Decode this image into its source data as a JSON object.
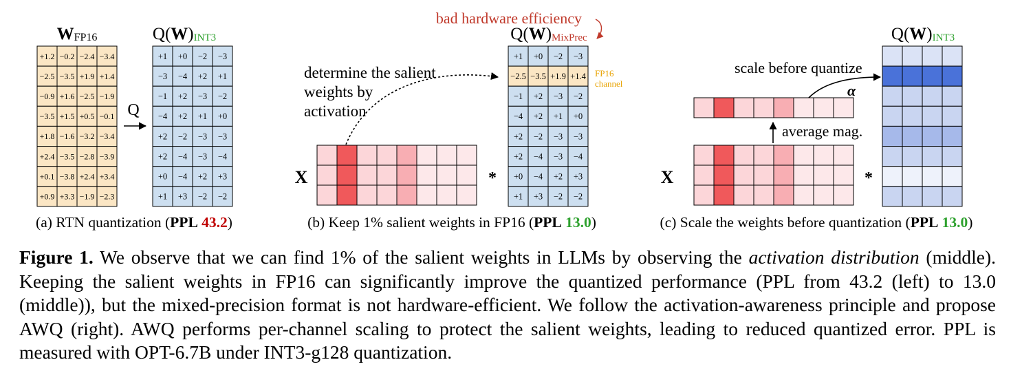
{
  "figure": {
    "panel_a": {
      "weight_title_main": "W",
      "weight_title_sub": "FP16",
      "quant_title_pre": "Q(",
      "quant_title_bold": "W",
      "quant_title_post": ")",
      "quant_title_sub": "INT3",
      "arrow_label": "Q",
      "fp16_matrix": [
        [
          "+1.2",
          "−0.2",
          "−2.4",
          "−3.4"
        ],
        [
          "−2.5",
          "−3.5",
          "+1.9",
          "+1.4"
        ],
        [
          "−0.9",
          "+1.6",
          "−2.5",
          "−1.9"
        ],
        [
          "−3.5",
          "+1.5",
          "+0.5",
          "−0.1"
        ],
        [
          "+1.8",
          "−1.6",
          "−3.2",
          "−3.4"
        ],
        [
          "+2.4",
          "−3.5",
          "−2.8",
          "−3.9"
        ],
        [
          "+0.1",
          "−3.8",
          "+2.4",
          "+3.4"
        ],
        [
          "+0.9",
          "+3.3",
          "−1.9",
          "−2.3"
        ]
      ],
      "int3_matrix": [
        [
          "+1",
          "+0",
          "−2",
          "−3"
        ],
        [
          "−3",
          "−4",
          "+2",
          "+1"
        ],
        [
          "−1",
          "+2",
          "−3",
          "−2"
        ],
        [
          "−4",
          "+2",
          "+1",
          "+0"
        ],
        [
          "+2",
          "−2",
          "−3",
          "−3"
        ],
        [
          "+2",
          "−4",
          "−3",
          "−4"
        ],
        [
          "+0",
          "−4",
          "+2",
          "+3"
        ],
        [
          "+1",
          "+3",
          "−2",
          "−2"
        ]
      ],
      "label_pre": "(a) RTN quantization (",
      "label_ppl": "PPL",
      "label_value": "43.2",
      "label_post": ")"
    },
    "panel_b": {
      "note": "bad hardware efficiency",
      "quant_title_pre": "Q(",
      "quant_title_bold": "W",
      "quant_title_post": ")",
      "quant_title_sub": "MixPrec",
      "annotation_lines": [
        "determine the salient",
        "weights by",
        "activation"
      ],
      "x_label": "X",
      "mult": "*",
      "fp16_tag_lines": [
        "FP16",
        "channel"
      ],
      "mixed_matrix": [
        [
          "+1",
          "+0",
          "−2",
          "−3"
        ],
        [
          "−2.5",
          "−3.5",
          "+1.9",
          "+1.4"
        ],
        [
          "−1",
          "+2",
          "−3",
          "−2"
        ],
        [
          "−4",
          "+2",
          "+1",
          "+0"
        ],
        [
          "+2",
          "−2",
          "−3",
          "−3"
        ],
        [
          "+2",
          "−4",
          "−3",
          "−4"
        ],
        [
          "+0",
          "−4",
          "+2",
          "+3"
        ],
        [
          "+1",
          "+3",
          "−2",
          "−2"
        ]
      ],
      "label_pre": "(b) Keep 1% salient weights in FP16 (",
      "label_ppl": "PPL",
      "label_value": "13.0",
      "label_post": ")"
    },
    "panel_c": {
      "quant_title_pre": "Q(",
      "quant_title_bold": "W",
      "quant_title_post": ")",
      "quant_title_sub": "INT3",
      "scale_note": "scale before quantize",
      "alpha": "α",
      "avg_note": "average mag.",
      "x_label": "X",
      "mult": "*",
      "label_pre": "(c) Scale the weights before quantization (",
      "label_ppl": "PPL",
      "label_value": "13.0",
      "label_post": ")"
    },
    "colors": {
      "fp16_fill": "#fbe6c4",
      "int3_fill": "#cddff0",
      "fp16_row_highlight": "#fbe6c4",
      "ppl_bad": "#c00000",
      "ppl_good": "#2ea12e",
      "int_sub": "#2ea12e",
      "mixprec_sub": "#c0392b",
      "note_red": "#c0392b",
      "fp16_tag": "#e8a200",
      "act_salient": "#f0595b",
      "act_mid": "#f8aeb3",
      "act_light": "#fcd6d9",
      "act_pale": "#fde8ea",
      "wq_salient": "#4a72d9",
      "wq_mid": "#a6b9ea",
      "wq_light": "#c9d5f1",
      "wq_pale": "#dbe3f6",
      "wq_white": "#eef2fb"
    }
  },
  "caption": {
    "fig_label": "Figure 1.",
    "part1": " We observe that we can find 1% of the salient weights in LLMs by observing the ",
    "italic": "activation distribution",
    "part2": " (middle). Keeping the salient weights in FP16 can significantly improve the quantized performance (PPL from 43.2 (left) to 13.0 (middle)), but the mixed-precision format is not hardware-efficient. We follow the activation-awareness principle and propose AWQ (right). AWQ performs per-channel scaling to protect the salient weights, leading to reduced quantized error. PPL is measured with OPT-6.7B under INT3-g128 quantization."
  }
}
